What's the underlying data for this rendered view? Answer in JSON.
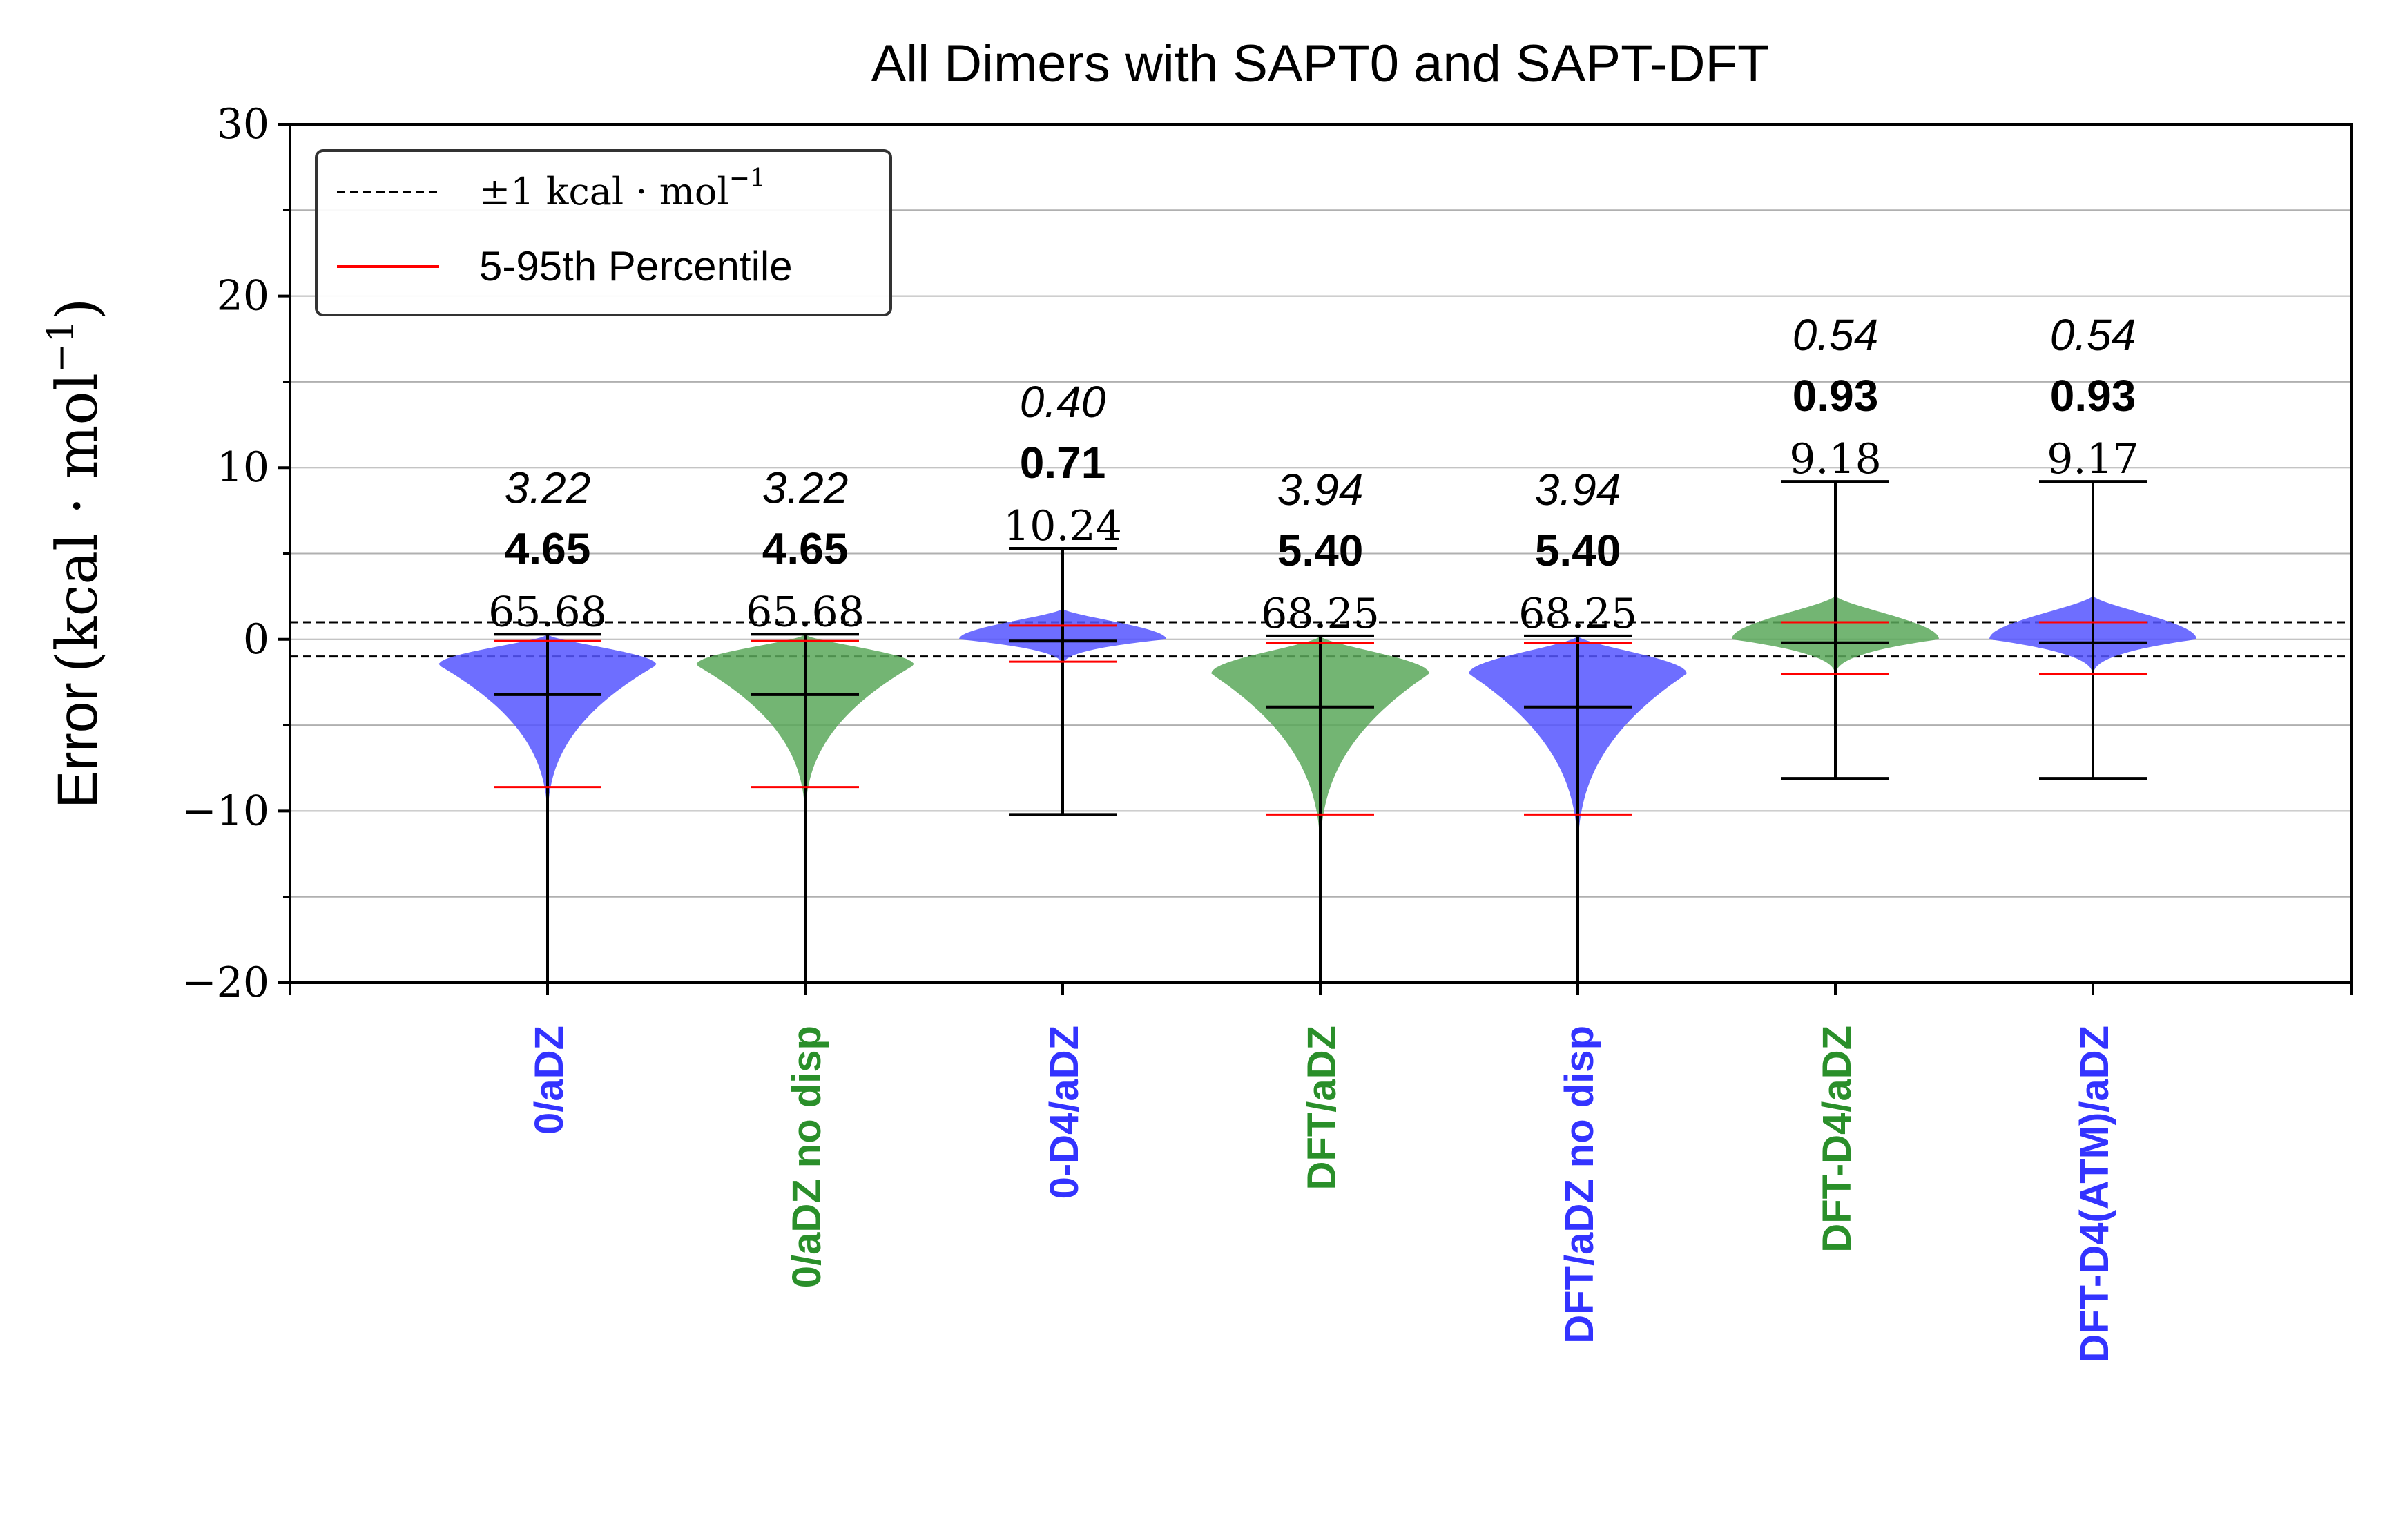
{
  "chart_data": {
    "type": "violin",
    "title": "All Dimers with SAPT0 and SAPT-DFT",
    "ylabel_text": "Error",
    "ylabel_unit": "(kcal · mol",
    "ylabel_sup": "−1",
    "ylabel_close": ")",
    "ylim": [
      -20,
      30
    ],
    "yticks": [
      {
        "v": -20,
        "label": "−20"
      },
      {
        "v": -10,
        "label": "−10"
      },
      {
        "v": 0,
        "label": "0"
      },
      {
        "v": 10,
        "label": "10"
      },
      {
        "v": 20,
        "label": "20"
      },
      {
        "v": 30,
        "label": "30"
      }
    ],
    "grid": "horizontal, every 5",
    "legend": {
      "placement": "top-left",
      "items": [
        {
          "kind": "dashed",
          "color": "#000000",
          "label": "±1 kcal · mol",
          "sup": "−1"
        },
        {
          "kind": "solid",
          "color": "#ff0000",
          "label": "5-95th Percentile",
          "sup": ""
        }
      ]
    },
    "colors": {
      "blue": "#3333ff",
      "green": "#2a8f2a",
      "blue_fill": "#5555ff",
      "green_fill": "#5aa85a",
      "percentile": "#ff0000"
    },
    "categories": [
      {
        "label": "0/aDZ",
        "color": "blue",
        "mae": "3.22",
        "rmse": "4.65",
        "maxe": "65.68",
        "mean": -3.22,
        "min": -20,
        "max": 0.3,
        "p5": -8.6,
        "p95": -0.1,
        "mode": -1.5,
        "width": 1.0,
        "tail": -11
      },
      {
        "label": "0/aDZ no disp",
        "color": "green",
        "mae": "3.22",
        "rmse": "4.65",
        "maxe": "65.68",
        "mean": -3.22,
        "min": -20,
        "max": 0.3,
        "p5": -8.6,
        "p95": -0.1,
        "mode": -1.5,
        "width": 1.0,
        "tail": -11
      },
      {
        "label": "0-D4/aDZ",
        "color": "blue",
        "mae": "0.40",
        "rmse": "0.71",
        "maxe": "10.24",
        "mean": -0.1,
        "min": -10.2,
        "max": 5.3,
        "p5": -1.3,
        "p95": 0.8,
        "mode": 0.0,
        "width": 1.0,
        "tail": -1.6
      },
      {
        "label": "DFT/aDZ",
        "color": "green",
        "mae": "3.94",
        "rmse": "5.40",
        "maxe": "68.25",
        "mean": -3.94,
        "min": -20,
        "max": 0.2,
        "p5": -10.2,
        "p95": -0.2,
        "mode": -2.0,
        "width": 1.0,
        "tail": -13
      },
      {
        "label": "DFT/aDZ no disp",
        "color": "blue",
        "mae": "3.94",
        "rmse": "5.40",
        "maxe": "68.25",
        "mean": -3.94,
        "min": -20,
        "max": 0.2,
        "p5": -10.2,
        "p95": -0.2,
        "mode": -2.0,
        "width": 1.0,
        "tail": -13
      },
      {
        "label": "DFT-D4/aDZ",
        "color": "green",
        "mae": "0.54",
        "rmse": "0.93",
        "maxe": "9.18",
        "mean": -0.2,
        "min": -8.1,
        "max": 9.2,
        "p5": -2.0,
        "p95": 1.0,
        "mode": 0.0,
        "width": 1.0,
        "tail": -2.2
      },
      {
        "label": "DFT-D4(ATM)/aDZ",
        "color": "blue",
        "mae": "0.54",
        "rmse": "0.93",
        "maxe": "9.17",
        "mean": -0.2,
        "min": -8.1,
        "max": 9.2,
        "p5": -2.0,
        "p95": 1.0,
        "mode": 0.0,
        "width": 1.0,
        "tail": -2.2
      }
    ]
  }
}
